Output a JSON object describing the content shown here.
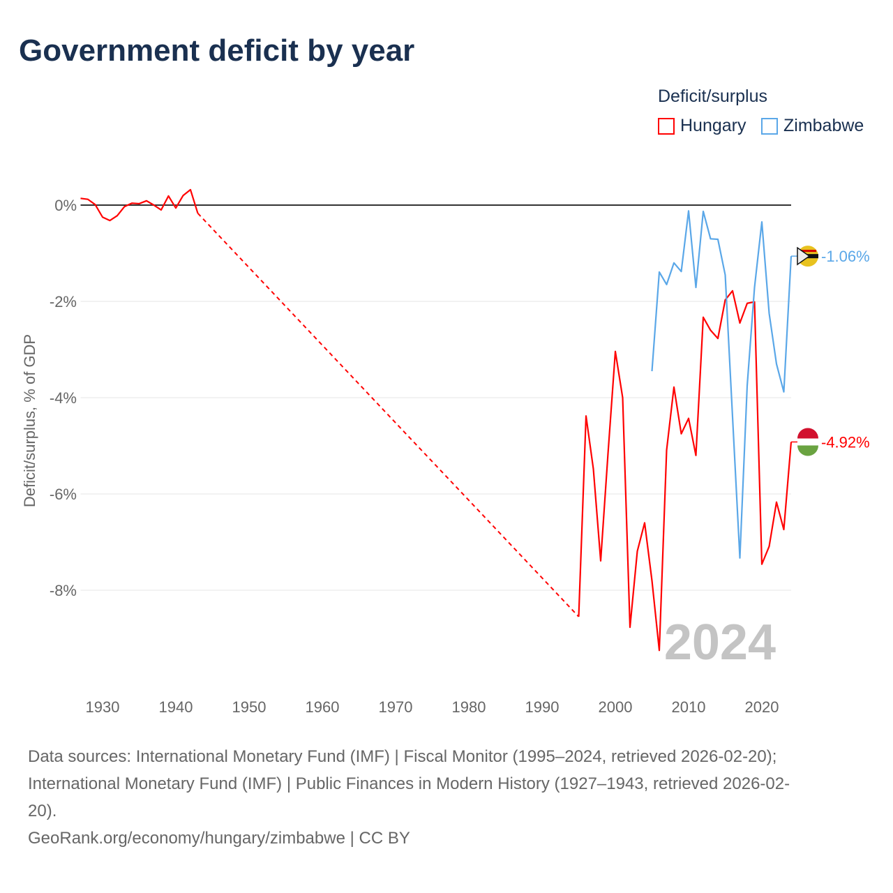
{
  "title": "Government deficit by year",
  "legend": {
    "title": "Deficit/surplus",
    "items": [
      {
        "name": "Hungary",
        "color": "#ff0000"
      },
      {
        "name": "Zimbabwe",
        "color": "#5aa7e8"
      }
    ]
  },
  "footer": {
    "line1": "Data sources: International Monetary Fund (IMF) | Fiscal Monitor (1995–2024, retrieved 2026-02-20);",
    "line2": "International Monetary Fund (IMF) | Public Finances in Modern History (1927–1943, retrieved 2026-02-",
    "line3": "20).",
    "line4": "GeoRank.org/economy/hungary/zimbabwe | CC BY"
  },
  "chart_data": {
    "type": "line",
    "title": "Government deficit by year",
    "xlabel": "",
    "ylabel": "Deficit/surplus, % of GDP",
    "xlim": [
      1927,
      2024
    ],
    "ylim": [
      -9.8,
      0.5
    ],
    "xticks": [
      1930,
      1940,
      1950,
      1960,
      1970,
      1980,
      1990,
      2000,
      2010,
      2020
    ],
    "yticks": [
      {
        "v": 0,
        "label": "0%"
      },
      {
        "v": -2,
        "label": "-2%"
      },
      {
        "v": -4,
        "label": "-4%"
      },
      {
        "v": -6,
        "label": "-6%"
      },
      {
        "v": -8,
        "label": "-8%"
      }
    ],
    "year_label": "2024",
    "series": [
      {
        "name": "Hungary",
        "color": "#ff0000",
        "end_label": "-4.92%",
        "gap": [
          1943,
          1995
        ],
        "x": [
          1927,
          1928,
          1929,
          1930,
          1931,
          1932,
          1933,
          1934,
          1935,
          1936,
          1937,
          1938,
          1939,
          1940,
          1941,
          1942,
          1943,
          1995,
          1996,
          1997,
          1998,
          1999,
          2000,
          2001,
          2002,
          2003,
          2004,
          2005,
          2006,
          2007,
          2008,
          2009,
          2010,
          2011,
          2012,
          2013,
          2014,
          2015,
          2016,
          2017,
          2018,
          2019,
          2020,
          2021,
          2022,
          2023,
          2024
        ],
        "y": [
          0.14,
          0.12,
          0.01,
          -0.25,
          -0.32,
          -0.22,
          -0.03,
          0.04,
          0.03,
          0.09,
          0,
          -0.1,
          0.19,
          -0.06,
          0.2,
          0.32,
          -0.17,
          -8.55,
          -4.38,
          -5.48,
          -7.39,
          -5.16,
          -3.04,
          -4.0,
          -8.77,
          -7.19,
          -6.6,
          -7.8,
          -9.25,
          -5.09,
          -3.78,
          -4.75,
          -4.43,
          -5.2,
          -2.33,
          -2.6,
          -2.77,
          -1.97,
          -1.78,
          -2.45,
          -2.04,
          -2.01,
          -7.46,
          -7.09,
          -6.17,
          -6.74,
          -4.92
        ]
      },
      {
        "name": "Zimbabwe",
        "color": "#5aa7e8",
        "end_label": "-1.06%",
        "x": [
          2005,
          2006,
          2007,
          2008,
          2009,
          2010,
          2011,
          2012,
          2013,
          2014,
          2015,
          2016,
          2017,
          2018,
          2019,
          2020,
          2021,
          2022,
          2023,
          2024
        ],
        "y": [
          -3.45,
          -1.39,
          -1.65,
          -1.2,
          -1.38,
          -0.12,
          -1.71,
          -0.13,
          -0.7,
          -0.71,
          -1.45,
          -4.4,
          -7.33,
          -3.75,
          -1.71,
          -0.35,
          -2.25,
          -3.3,
          -3.88,
          -1.06
        ]
      }
    ]
  }
}
